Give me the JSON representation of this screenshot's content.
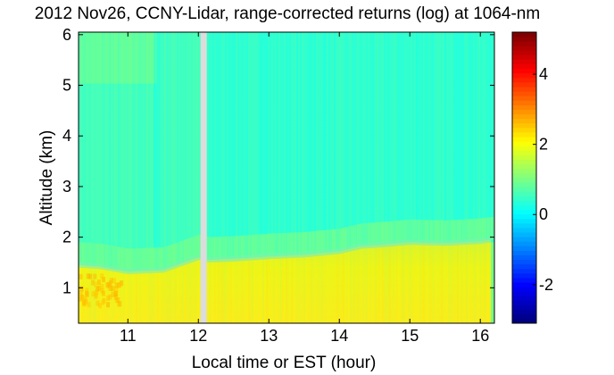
{
  "chart_data": {
    "type": "heatmap",
    "title": "2012 Nov26, CCNY-Lidar, range-corrected returns (log) at 1064-nm",
    "xlabel": "Local time or EST (hour)",
    "ylabel": "Altitude (km)",
    "xlim": [
      10.3,
      16.2
    ],
    "ylim": [
      0.3,
      6.05
    ],
    "xticks": [
      "11",
      "12",
      "13",
      "14",
      "15",
      "16"
    ],
    "yticks": [
      "1",
      "2",
      "3",
      "4",
      "5",
      "6"
    ],
    "colorbar": {
      "clim": [
        -3.1,
        5.2
      ],
      "ticks": [
        "-2",
        "0",
        "2",
        "4"
      ],
      "colormap": "jet"
    },
    "data_gap": {
      "start": 12.03,
      "end": 12.12
    },
    "boundary_layer": {
      "time": [
        10.3,
        10.6,
        11.0,
        11.5,
        12.0,
        12.15,
        12.5,
        13.0,
        13.5,
        14.0,
        14.3,
        14.6,
        15.0,
        15.5,
        16.0,
        16.15
      ],
      "top_km": [
        1.45,
        1.42,
        1.32,
        1.35,
        1.6,
        1.55,
        1.57,
        1.62,
        1.65,
        1.72,
        1.82,
        1.85,
        1.9,
        1.88,
        1.92,
        1.95
      ]
    },
    "values": {
      "below_bl": 2.0,
      "near_surface_early": 2.5,
      "transition_zone": 0.9,
      "free_troposphere": 0.4,
      "upper_early": 0.7
    }
  },
  "colors": {
    "gap": "#dcdcdc",
    "background": "#ffffff"
  }
}
